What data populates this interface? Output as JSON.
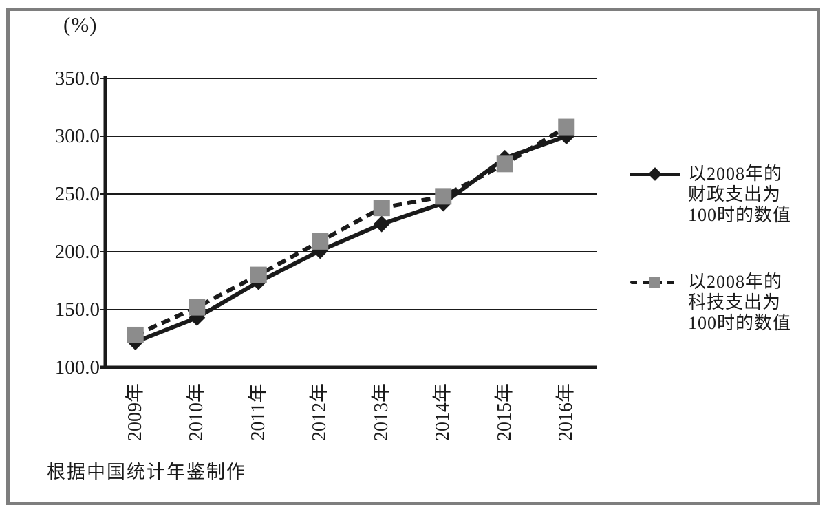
{
  "figure": {
    "unit_label": "(%)",
    "source_note": "根据中国统计年鉴制作"
  },
  "colors": {
    "ink": "#1a1a1a",
    "square_marker": "#8c8c8c",
    "frame_border": "#7e7e7e"
  },
  "chart_data": {
    "type": "line",
    "categories": [
      "2009年",
      "2010年",
      "2011年",
      "2012年",
      "2013年",
      "2014年",
      "2015年",
      "2016年"
    ],
    "series": [
      {
        "name": "以2008年的财政支出为100时的数值",
        "line_style": "solid",
        "marker": "diamond",
        "values": [
          122,
          143,
          174,
          201,
          224,
          242,
          281,
          300
        ]
      },
      {
        "name": "以2008年的科技支出为100时的数值",
        "line_style": "dashed",
        "marker": "square",
        "values": [
          128,
          152,
          180,
          209,
          238,
          248,
          276,
          308
        ]
      }
    ],
    "title": "",
    "xlabel": "",
    "ylabel": "(%)",
    "ylim": [
      100,
      350
    ],
    "ytick_step": 50,
    "ytick_labels": [
      "100.0",
      "150.0",
      "200.0",
      "250.0",
      "300.0",
      "350.0"
    ],
    "grid": true,
    "legend_position": "right"
  },
  "legend": {
    "items": [
      {
        "lines": [
          "以2008年的",
          "财政支出为",
          "100时的数值"
        ]
      },
      {
        "lines": [
          "以2008年的",
          "科技支出为",
          "100时的数值"
        ]
      }
    ]
  }
}
